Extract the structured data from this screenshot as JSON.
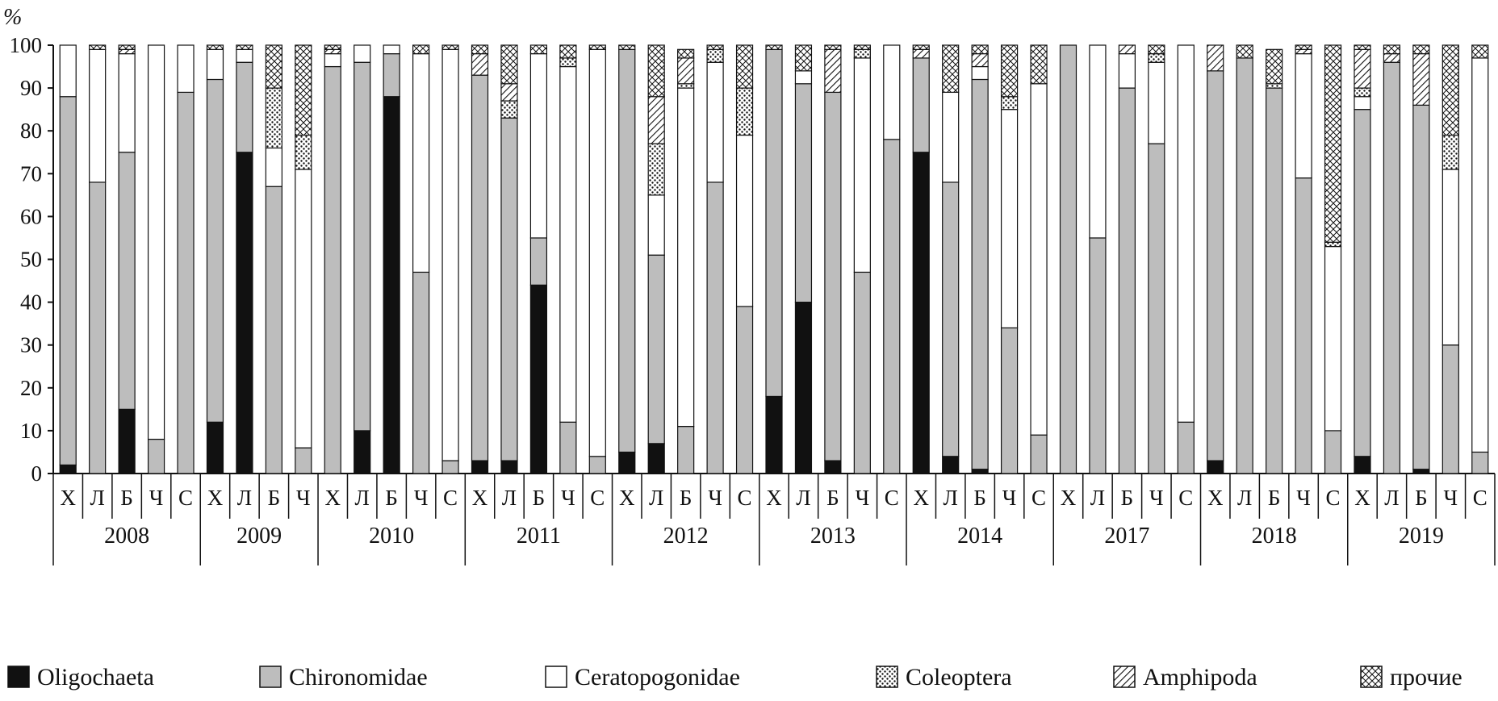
{
  "chart_data": {
    "type": "stacked-bar",
    "ylabel": "%",
    "ylim": [
      0,
      100
    ],
    "yticks": [
      "0",
      "10",
      "20",
      "30",
      "40",
      "50",
      "60",
      "70",
      "80",
      "90",
      "100"
    ],
    "grid": false,
    "legend_position": "bottom",
    "groups": [
      {
        "label": "2008",
        "sites": [
          "Х",
          "Л",
          "Б",
          "Ч",
          "С"
        ]
      },
      {
        "label": "2009",
        "sites": [
          "Х",
          "Л",
          "Б",
          "Ч"
        ]
      },
      {
        "label": "2010",
        "sites": [
          "Х",
          "Л",
          "Б",
          "Ч",
          "С"
        ]
      },
      {
        "label": "2011",
        "sites": [
          "Х",
          "Л",
          "Б",
          "Ч",
          "С"
        ]
      },
      {
        "label": "2012",
        "sites": [
          "Х",
          "Л",
          "Б",
          "Ч",
          "С"
        ]
      },
      {
        "label": "2013",
        "sites": [
          "Х",
          "Л",
          "Б",
          "Ч",
          "С"
        ]
      },
      {
        "label": "2014",
        "sites": [
          "Х",
          "Л",
          "Б",
          "Ч",
          "С"
        ]
      },
      {
        "label": "2017",
        "sites": [
          "Х",
          "Л",
          "Б",
          "Ч",
          "С"
        ]
      },
      {
        "label": "2018",
        "sites": [
          "Х",
          "Л",
          "Б",
          "Ч",
          "С"
        ]
      },
      {
        "label": "2019",
        "sites": [
          "Х",
          "Л",
          "Б",
          "Ч",
          "С"
        ]
      }
    ],
    "series": [
      {
        "name": "Oligochaeta",
        "color": "#111111",
        "values": [
          2,
          0,
          15,
          0,
          0,
          12,
          75,
          0,
          0,
          0,
          10,
          88,
          0,
          0,
          3,
          3,
          44,
          0,
          0,
          5,
          7,
          0,
          0,
          0,
          18,
          40,
          3,
          0,
          0,
          75,
          4,
          1,
          0,
          0,
          0,
          0,
          0,
          0,
          0,
          3,
          0,
          0,
          0,
          0,
          4,
          0,
          1,
          0,
          0
        ]
      },
      {
        "name": "Chironomidae",
        "color": "#bdbdbd",
        "values": [
          86,
          68,
          60,
          8,
          89,
          80,
          21,
          67,
          6,
          95,
          86,
          10,
          47,
          3,
          90,
          80,
          11,
          12,
          4,
          94,
          44,
          11,
          68,
          39,
          81,
          51,
          86,
          47,
          78,
          22,
          64,
          91,
          34,
          9,
          100,
          55,
          90,
          77,
          12,
          91,
          97,
          90,
          69,
          10,
          81,
          96,
          85,
          30,
          5
        ]
      },
      {
        "name": "Ceratopogonidae",
        "color": "#ffffff",
        "values": [
          12,
          31,
          23,
          92,
          11,
          7,
          3,
          9,
          65,
          3,
          4,
          2,
          51,
          96,
          0,
          0,
          43,
          83,
          95,
          0,
          14,
          79,
          28,
          40,
          0,
          3,
          0,
          50,
          22,
          0,
          21,
          3,
          51,
          82,
          0,
          45,
          8,
          19,
          88,
          0,
          0,
          0,
          29,
          43,
          3,
          0,
          0,
          41,
          92
        ]
      },
      {
        "name": "Coleoptera",
        "color": "pattern-dots",
        "values": [
          0,
          0,
          0,
          0,
          0,
          0,
          0,
          14,
          8,
          0,
          0,
          0,
          0,
          0,
          0,
          4,
          0,
          2,
          0,
          0,
          12,
          1,
          3,
          11,
          0,
          0,
          0,
          2,
          0,
          0,
          0,
          0,
          3,
          0,
          0,
          0,
          0,
          2,
          0,
          0,
          0,
          1,
          0,
          1,
          2,
          0,
          0,
          8,
          0
        ]
      },
      {
        "name": "Amphipoda",
        "color": "pattern-hatch",
        "values": [
          0,
          0,
          1,
          0,
          0,
          0,
          0,
          0,
          0,
          1,
          0,
          0,
          0,
          0,
          5,
          4,
          0,
          0,
          0,
          0,
          11,
          6,
          0,
          0,
          0,
          0,
          10,
          0,
          0,
          2,
          0,
          3,
          0,
          0,
          0,
          0,
          2,
          0,
          0,
          6,
          0,
          0,
          1,
          0,
          9,
          2,
          12,
          0,
          0
        ]
      },
      {
        "name": "прочие",
        "color": "pattern-cross",
        "values": [
          0,
          1,
          1,
          0,
          0,
          1,
          1,
          10,
          21,
          1,
          0,
          0,
          2,
          1,
          2,
          9,
          2,
          3,
          1,
          1,
          12,
          2,
          1,
          10,
          1,
          6,
          1,
          1,
          0,
          1,
          11,
          2,
          12,
          9,
          0,
          0,
          0,
          2,
          0,
          0,
          3,
          8,
          1,
          46,
          1,
          2,
          2,
          21,
          3
        ]
      }
    ]
  }
}
